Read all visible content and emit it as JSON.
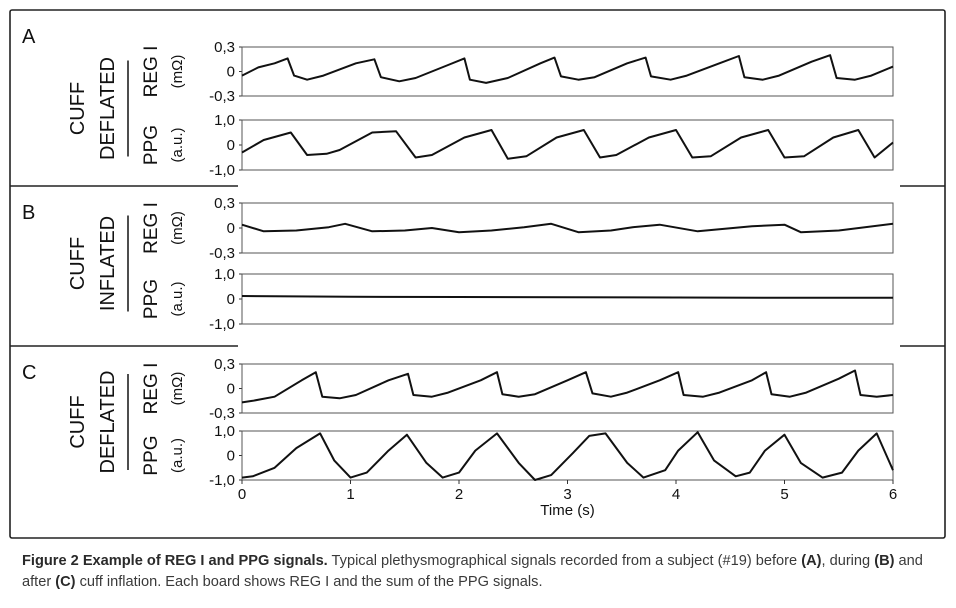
{
  "caption": {
    "title": "Figure 2 Example of REG I and PPG signals.",
    "part1": " Typical plethysmographical signals recorded from a subject (#19) before ",
    "label_a": "(A)",
    "part2": ", during ",
    "label_b": "(B)",
    "part3": " and after ",
    "label_c": "(C)",
    "part4": " cuff inflation. Each board shows REG I and the sum of the PPG signals."
  },
  "x_axis": {
    "label": "Time (s)",
    "ticks": [
      "0",
      "1",
      "2",
      "3",
      "4",
      "5",
      "6"
    ],
    "range": [
      0,
      6
    ]
  },
  "colors": {
    "line": "#111111",
    "caption_title": "#2a2a2a",
    "caption_text": "#3a3a3a"
  },
  "chart_data": [
    {
      "board": "A",
      "condition": [
        "CUFF",
        "DEFLATED"
      ],
      "signals": [
        {
          "name": "REG I",
          "unit": "(mΩ)",
          "ylim": [
            -0.3,
            0.3
          ],
          "ticks": [
            "0,3",
            "0",
            "-0,3"
          ],
          "x": [
            0,
            0.15,
            0.3,
            0.42,
            0.48,
            0.6,
            0.75,
            1.05,
            1.22,
            1.28,
            1.45,
            1.6,
            1.9,
            2.05,
            2.1,
            2.25,
            2.45,
            2.75,
            2.88,
            2.94,
            3.1,
            3.25,
            3.55,
            3.72,
            3.77,
            3.95,
            4.1,
            4.4,
            4.58,
            4.63,
            4.8,
            4.95,
            5.25,
            5.42,
            5.48,
            5.65,
            5.8,
            6.0
          ],
          "y": [
            -0.05,
            0.05,
            0.1,
            0.16,
            -0.05,
            -0.1,
            -0.05,
            0.1,
            0.15,
            -0.07,
            -0.12,
            -0.08,
            0.08,
            0.16,
            -0.1,
            -0.14,
            -0.08,
            0.1,
            0.17,
            -0.06,
            -0.1,
            -0.07,
            0.1,
            0.17,
            -0.06,
            -0.1,
            -0.05,
            0.1,
            0.19,
            -0.07,
            -0.1,
            -0.05,
            0.12,
            0.2,
            -0.08,
            -0.1,
            -0.05,
            0.06
          ]
        },
        {
          "name": "PPG",
          "unit": "(a.u.)",
          "ylim": [
            -1.0,
            1.0
          ],
          "ticks": [
            "1,0",
            "0",
            "-1,0"
          ],
          "x": [
            0,
            0.2,
            0.45,
            0.6,
            0.78,
            0.9,
            1.2,
            1.42,
            1.6,
            1.75,
            2.05,
            2.3,
            2.45,
            2.62,
            2.9,
            3.15,
            3.3,
            3.45,
            3.75,
            4.0,
            4.15,
            4.32,
            4.6,
            4.85,
            5.0,
            5.18,
            5.45,
            5.68,
            5.83,
            6.0
          ],
          "y": [
            -0.3,
            0.2,
            0.5,
            -0.4,
            -0.35,
            -0.2,
            0.5,
            0.55,
            -0.5,
            -0.4,
            0.3,
            0.6,
            -0.55,
            -0.45,
            0.3,
            0.6,
            -0.5,
            -0.4,
            0.3,
            0.6,
            -0.5,
            -0.45,
            0.3,
            0.6,
            -0.5,
            -0.45,
            0.3,
            0.6,
            -0.5,
            0.1
          ]
        }
      ]
    },
    {
      "board": "B",
      "condition": [
        "CUFF",
        "INFLATED"
      ],
      "signals": [
        {
          "name": "REG I",
          "unit": "(mΩ)",
          "ylim": [
            -0.3,
            0.3
          ],
          "ticks": [
            "0,3",
            "0",
            "-0,3"
          ],
          "x": [
            0,
            0.2,
            0.5,
            0.8,
            0.95,
            1.2,
            1.5,
            1.75,
            2.0,
            2.3,
            2.6,
            2.85,
            3.1,
            3.4,
            3.6,
            3.85,
            4.2,
            4.35,
            4.7,
            5.0,
            5.15,
            5.5,
            6.0
          ],
          "y": [
            0.04,
            -0.04,
            -0.03,
            0.01,
            0.05,
            -0.04,
            -0.03,
            0.0,
            -0.05,
            -0.03,
            0.01,
            0.05,
            -0.05,
            -0.03,
            0.01,
            0.04,
            -0.04,
            -0.02,
            0.02,
            0.04,
            -0.05,
            -0.03,
            0.05
          ]
        },
        {
          "name": "PPG",
          "unit": "(a.u.)",
          "ylim": [
            -1.0,
            1.0
          ],
          "ticks": [
            "1,0",
            "0",
            "-1,0"
          ],
          "x": [
            0,
            1,
            2,
            3,
            4,
            5,
            6
          ],
          "y": [
            0.12,
            0.09,
            0.08,
            0.07,
            0.06,
            0.05,
            0.05
          ]
        }
      ]
    },
    {
      "board": "C",
      "condition": [
        "CUFF",
        "DEFLATED"
      ],
      "signals": [
        {
          "name": "REG I",
          "unit": "(mΩ)",
          "ylim": [
            -0.3,
            0.3
          ],
          "ticks": [
            "0,3",
            "0",
            "-0,3"
          ],
          "x": [
            0,
            0.1,
            0.3,
            0.55,
            0.68,
            0.74,
            0.9,
            1.05,
            1.35,
            1.53,
            1.58,
            1.75,
            1.9,
            2.2,
            2.35,
            2.4,
            2.55,
            2.7,
            3.0,
            3.17,
            3.23,
            3.4,
            3.55,
            3.85,
            4.02,
            4.07,
            4.25,
            4.4,
            4.7,
            4.83,
            4.88,
            5.05,
            5.2,
            5.5,
            5.65,
            5.7,
            5.85,
            6.0
          ],
          "y": [
            -0.17,
            -0.15,
            -0.1,
            0.1,
            0.2,
            -0.1,
            -0.12,
            -0.08,
            0.1,
            0.18,
            -0.08,
            -0.1,
            -0.05,
            0.1,
            0.2,
            -0.07,
            -0.1,
            -0.07,
            0.1,
            0.2,
            -0.06,
            -0.1,
            -0.05,
            0.1,
            0.2,
            -0.08,
            -0.1,
            -0.05,
            0.1,
            0.2,
            -0.07,
            -0.1,
            -0.05,
            0.12,
            0.22,
            -0.08,
            -0.1,
            -0.08
          ]
        },
        {
          "name": "PPG",
          "unit": "(a.u.)",
          "ylim": [
            -1.0,
            1.0
          ],
          "ticks": [
            "1,0",
            "0",
            "-1,0"
          ],
          "x": [
            0,
            0.1,
            0.3,
            0.5,
            0.72,
            0.85,
            1.0,
            1.15,
            1.35,
            1.52,
            1.7,
            1.85,
            2.0,
            2.15,
            2.35,
            2.55,
            2.7,
            2.85,
            3.05,
            3.2,
            3.35,
            3.55,
            3.7,
            3.9,
            4.02,
            4.2,
            4.35,
            4.55,
            4.68,
            4.82,
            5.0,
            5.15,
            5.35,
            5.53,
            5.68,
            5.85,
            6.0
          ],
          "y": [
            -0.9,
            -0.85,
            -0.5,
            0.3,
            0.9,
            -0.2,
            -0.9,
            -0.7,
            0.2,
            0.85,
            -0.3,
            -0.9,
            -0.7,
            0.2,
            0.9,
            -0.3,
            -1.0,
            -0.8,
            0.1,
            0.8,
            0.9,
            -0.3,
            -0.9,
            -0.6,
            0.2,
            0.95,
            -0.2,
            -0.85,
            -0.7,
            0.2,
            0.85,
            -0.3,
            -0.9,
            -0.7,
            0.2,
            0.9,
            -0.6
          ]
        }
      ]
    }
  ]
}
